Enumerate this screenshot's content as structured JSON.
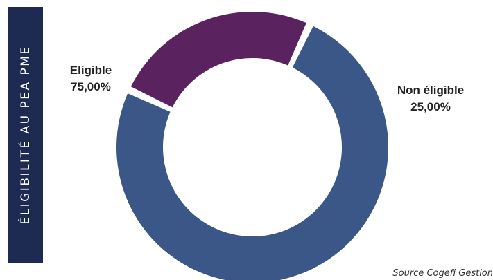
{
  "side_title": "ÉLIGIBILITÉ AU PEA PME",
  "source": "Source Cogefi Gestion",
  "colors": {
    "band": "#1d2b52",
    "eligible": "#3a5787",
    "non_eligible": "#5b2260"
  },
  "chart_data": {
    "type": "pie",
    "donut": true,
    "title": "ÉLIGIBILITÉ AU PEA PME",
    "slices": [
      {
        "name": "Eligible",
        "value": 75.0,
        "label": "75,00%",
        "color": "#3a5787"
      },
      {
        "name": "Non éligible",
        "value": 25.0,
        "label": "25,00%",
        "color": "#5b2260"
      }
    ]
  }
}
